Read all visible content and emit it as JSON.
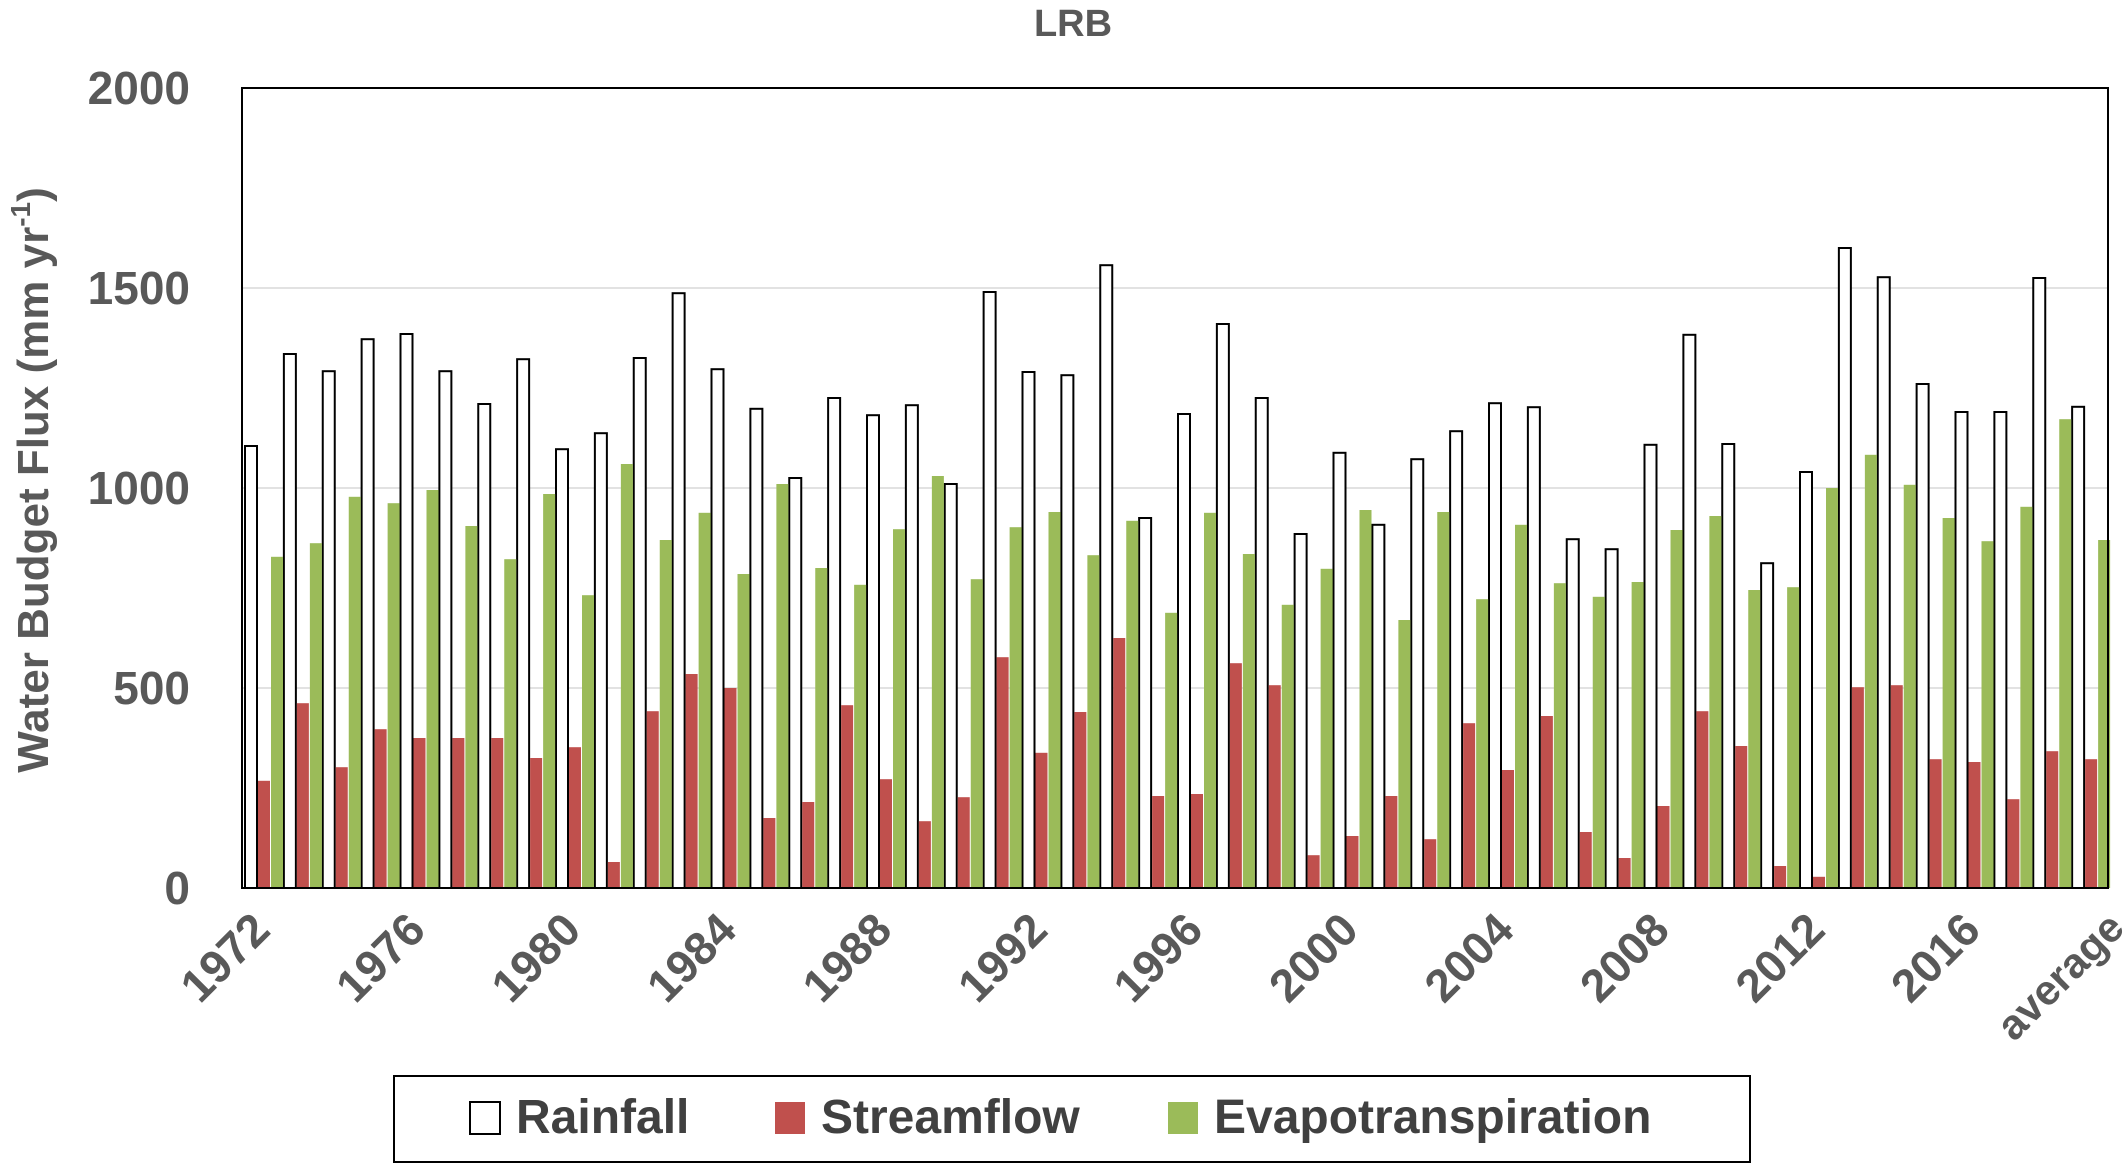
{
  "chart_data": {
    "type": "bar",
    "title": "LRB",
    "ylabel": "Water Budget Flux (mm yr-1)",
    "ylabel_main": "Water Budget Flux (mm yr",
    "ylabel_sup": "-1",
    "ylabel_close": ")",
    "ylim": [
      0,
      2000
    ],
    "yticks": [
      "0",
      "500",
      "1000",
      "1500",
      "2000"
    ],
    "grid": true,
    "legend_position": "bottom",
    "categories": [
      "1972",
      "1973",
      "1974",
      "1975",
      "1976",
      "1977",
      "1978",
      "1979",
      "1980",
      "1981",
      "1982",
      "1983",
      "1984",
      "1985",
      "1986",
      "1987",
      "1988",
      "1989",
      "1990",
      "1991",
      "1992",
      "1993",
      "1994",
      "1995",
      "1996",
      "1997",
      "1998",
      "1999",
      "2000",
      "2001",
      "2002",
      "2003",
      "2004",
      "2005",
      "2006",
      "2007",
      "2008",
      "2009",
      "2010",
      "2011",
      "2012",
      "2013",
      "2014",
      "2015",
      "2016",
      "2017",
      "2018",
      "average"
    ],
    "xtick_labels": [
      "1972",
      "1976",
      "1980",
      "1984",
      "1988",
      "1992",
      "1996",
      "2000",
      "2004",
      "2008",
      "2012",
      "2016",
      "average"
    ],
    "series": [
      {
        "name": "Rainfall",
        "color": "#ffffff",
        "stroke": "#000000",
        "values": [
          1105,
          1335,
          1292,
          1372,
          1385,
          1292,
          1210,
          1322,
          1097,
          1137,
          1325,
          1487,
          1297,
          1198,
          1025,
          1225,
          1182,
          1207,
          1010,
          1490,
          1290,
          1282,
          1557,
          925,
          1185,
          1410,
          1225,
          885,
          1088,
          908,
          1072,
          1142,
          1212,
          1202,
          872,
          847,
          1108,
          1383,
          1110,
          812,
          1040,
          1600,
          1527,
          1260,
          1190,
          1190,
          1525,
          1203
        ]
      },
      {
        "name": "Streamflow",
        "color": "#c0504d",
        "values": [
          268,
          462,
          302,
          397,
          375,
          375,
          375,
          325,
          352,
          65,
          442,
          535,
          500,
          175,
          215,
          457,
          272,
          167,
          227,
          577,
          338,
          440,
          625,
          230,
          235,
          562,
          507,
          82,
          130,
          230,
          122,
          412,
          295,
          430,
          140,
          75,
          205,
          442,
          355,
          55,
          28,
          502,
          507,
          322,
          315,
          222,
          342,
          322
        ]
      },
      {
        "name": "Evapotranspiration",
        "color": "#9bbb59",
        "values": [
          828,
          862,
          978,
          962,
          995,
          905,
          822,
          985,
          732,
          1060,
          870,
          938,
          785,
          1010,
          800,
          758,
          897,
          1030,
          772,
          902,
          940,
          832,
          918,
          688,
          938,
          835,
          708,
          798,
          945,
          670,
          940,
          722,
          908,
          762,
          728,
          765,
          895,
          930,
          745,
          752,
          1000,
          1083,
          1008,
          925,
          867,
          953,
          1172,
          870
        ]
      }
    ]
  }
}
